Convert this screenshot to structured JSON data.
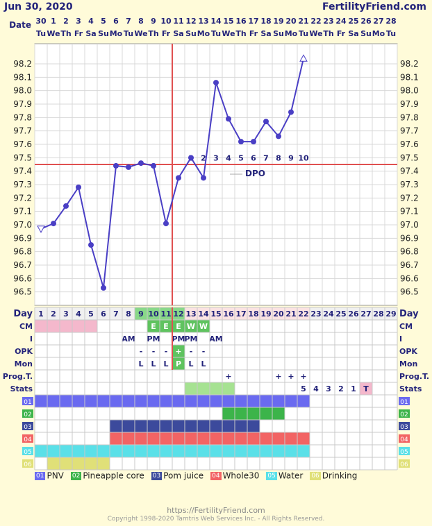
{
  "header": {
    "date": "Jun 30, 2020",
    "brand": "FertilityFriend.com"
  },
  "labels": {
    "date": "Date",
    "day": "Day",
    "cm": "CM",
    "i": "I",
    "opk": "OPK",
    "mon": "Mon",
    "prog": "Prog.T.",
    "stats": "Stats",
    "dpo": "DPO"
  },
  "footer": {
    "url": "https://FertilityFriend.com",
    "copyright": "Copyright 1998-2020 Tamtris Web Services Inc. - All Rights Reserved."
  },
  "colors": {
    "line": "#4a3fc5",
    "coverline": "#e05050",
    "grid": "#d8d8d8",
    "plot_bg": "#ffffff",
    "text": "#23237a"
  },
  "chart_data": {
    "type": "line",
    "dates": [
      "30",
      "1",
      "2",
      "3",
      "4",
      "5",
      "6",
      "7",
      "8",
      "9",
      "10",
      "11",
      "12",
      "13",
      "14",
      "15",
      "16",
      "17",
      "18",
      "19",
      "20",
      "21",
      "22",
      "23",
      "24",
      "25",
      "26",
      "27",
      "28"
    ],
    "weekdays": [
      "Tu",
      "We",
      "Th",
      "Fr",
      "Sa",
      "Su",
      "Mo",
      "Tu",
      "We",
      "Th",
      "Fr",
      "Sa",
      "Su",
      "Mo",
      "Tu",
      "We",
      "Th",
      "Fr",
      "Sa",
      "Su",
      "Mo",
      "Tu",
      "We",
      "Th",
      "Fr",
      "Sa",
      "Su",
      "Mo",
      "Tu"
    ],
    "cycle_days": [
      1,
      2,
      3,
      4,
      5,
      6,
      7,
      8,
      9,
      10,
      11,
      12,
      13,
      14,
      15,
      16,
      17,
      18,
      19,
      20,
      21,
      22,
      23,
      24,
      25,
      26,
      27,
      28,
      29
    ],
    "temps": [
      96.97,
      97.01,
      97.14,
      97.28,
      96.85,
      96.53,
      97.44,
      97.43,
      97.46,
      97.44,
      97.01,
      97.35,
      97.5,
      97.35,
      98.06,
      97.79,
      97.62,
      97.62,
      97.77,
      97.66,
      97.84,
      98.24
    ],
    "point_markers": [
      "open-triangle-down",
      "dot",
      "dot",
      "dot",
      "dot",
      "dot",
      "dot",
      "dot",
      "dot",
      "dot",
      "dot",
      "dot",
      "dot",
      "dot",
      "dot",
      "dot",
      "dot",
      "dot",
      "dot",
      "dot",
      "dot",
      "open-triangle-up"
    ],
    "ylim": [
      96.4,
      98.35
    ],
    "yticks": [
      "96.5",
      "96.6",
      "96.7",
      "96.8",
      "96.9",
      "97.0",
      "97.1",
      "97.2",
      "97.3",
      "97.4",
      "97.5",
      "97.6",
      "97.7",
      "97.8",
      "97.9",
      "98.0",
      "98.1",
      "98.2"
    ],
    "coverline": 97.45,
    "ovulation_day": 12,
    "dpo_labels": [
      "1",
      "2",
      "3",
      "4",
      "5",
      "6",
      "7",
      "8",
      "9",
      "10"
    ],
    "dpo_start_day": 13,
    "day_highlights": {
      "green": [
        9,
        10,
        11,
        12
      ],
      "pink": [
        13,
        14,
        15,
        16,
        17,
        18,
        19,
        20,
        21,
        22
      ]
    },
    "cm": [
      {
        "day": 10,
        "v": "E"
      },
      {
        "day": 11,
        "v": "E"
      },
      {
        "day": 12,
        "v": "E"
      },
      {
        "day": 13,
        "v": "W"
      },
      {
        "day": 14,
        "v": "W"
      }
    ],
    "cm_pink_days": [
      1,
      2,
      3,
      4,
      5
    ],
    "intercourse": [
      {
        "day": 8,
        "v": "AM"
      },
      {
        "day": 10,
        "v": "PM"
      },
      {
        "day": 12,
        "v": "PM"
      },
      {
        "day": 13,
        "v": "PM"
      },
      {
        "day": 15,
        "v": "AM"
      }
    ],
    "opk": [
      {
        "day": 9,
        "v": "-"
      },
      {
        "day": 10,
        "v": "-"
      },
      {
        "day": 11,
        "v": "-"
      },
      {
        "day": 12,
        "v": "+"
      },
      {
        "day": 13,
        "v": "-"
      },
      {
        "day": 14,
        "v": "-"
      }
    ],
    "mon": [
      {
        "day": 9,
        "v": "L"
      },
      {
        "day": 10,
        "v": "L"
      },
      {
        "day": 11,
        "v": "L"
      },
      {
        "day": 12,
        "v": "P"
      },
      {
        "day": 13,
        "v": "L"
      },
      {
        "day": 14,
        "v": "L"
      }
    ],
    "prog": [
      {
        "day": 16,
        "v": "+"
      },
      {
        "day": 20,
        "v": "+"
      },
      {
        "day": 21,
        "v": "+"
      },
      {
        "day": 22,
        "v": "+"
      }
    ],
    "stats_green": [
      13,
      16
    ],
    "stats": [
      {
        "day": 22,
        "v": "5"
      },
      {
        "day": 23,
        "v": "4"
      },
      {
        "day": 24,
        "v": "3"
      },
      {
        "day": 25,
        "v": "2"
      },
      {
        "day": 26,
        "v": "1"
      },
      {
        "day": 27,
        "v": "T"
      }
    ],
    "custom": [
      {
        "id": "01",
        "name": "PNV",
        "color": "#6a6af0",
        "start": 1,
        "end": 22
      },
      {
        "id": "02",
        "name": "Pineapple core",
        "color": "#3cb44a",
        "start": 16,
        "end": 20
      },
      {
        "id": "03",
        "name": "Pom juice",
        "color": "#3c4a9c",
        "start": 7,
        "end": 18
      },
      {
        "id": "04",
        "name": "Whole30",
        "color": "#f26464",
        "start": 7,
        "end": 22
      },
      {
        "id": "05",
        "name": "Water",
        "color": "#5ae0e8",
        "start": 1,
        "end": 22
      },
      {
        "id": "06",
        "name": "Drinking",
        "color": "#e0e078",
        "start": 2,
        "end": 6
      }
    ]
  }
}
